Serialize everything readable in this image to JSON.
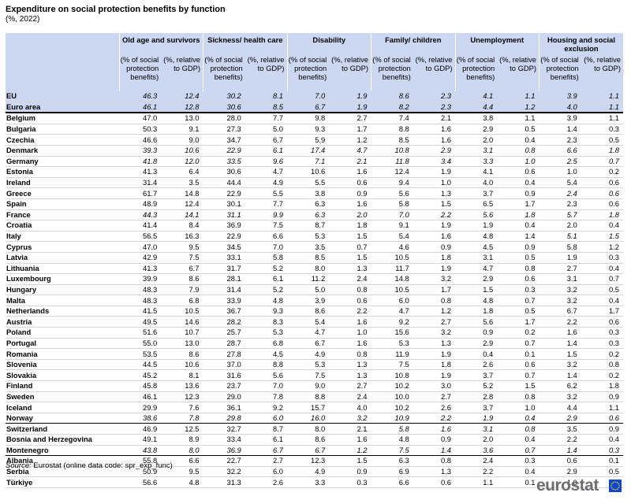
{
  "title": "Expenditure on social protection benefits by function",
  "subtitle": "(%, 2022)",
  "sub_headers": {
    "share": "(% of social protection benefits)",
    "gdp": "(%, relative to GDP)"
  },
  "groups": [
    "Old age and survivors",
    "Sickness/ health care",
    "Disability",
    "Family/ children",
    "Unemployment",
    "Housing and social exclusion"
  ],
  "rows": [
    {
      "name": "EU",
      "v": [
        "46.3",
        "12.4",
        "30.2",
        "8.1",
        "7.0",
        "1.9",
        "8.6",
        "2.3",
        "4.1",
        "1.1",
        "3.9",
        "1.1"
      ]
    },
    {
      "name": "Euro area",
      "v": [
        "46.1",
        "12.8",
        "30.6",
        "8.5",
        "6.7",
        "1.9",
        "8.2",
        "2.3",
        "4.4",
        "1.2",
        "4.0",
        "1.1"
      ]
    },
    {
      "name": "Belgium",
      "v": [
        "47.0",
        "13.0",
        "28.0",
        "7.7",
        "9.8",
        "2.7",
        "7.4",
        "2.1",
        "3.8",
        "1.1",
        "3.9",
        "1.1"
      ]
    },
    {
      "name": "Bulgaria",
      "v": [
        "50.3",
        "9.1",
        "27.3",
        "5.0",
        "9.3",
        "1.7",
        "8.8",
        "1.6",
        "2.9",
        "0.5",
        "1.4",
        "0.3"
      ]
    },
    {
      "name": "Czechia",
      "v": [
        "46.6",
        "9.0",
        "34.7",
        "6.7",
        "5.9",
        "1.2",
        "8.5",
        "1.6",
        "2.0",
        "0.4",
        "2.3",
        "0.5"
      ]
    },
    {
      "name": "Denmark",
      "v": [
        "39.3",
        "10.6",
        "22.9",
        "6.1",
        "17.4",
        "4.7",
        "10.8",
        "2.9",
        "3.1",
        "0.8",
        "6.6",
        "1.8"
      ]
    },
    {
      "name": "Germany",
      "v": [
        "41.8",
        "12.0",
        "33.5",
        "9.6",
        "7.1",
        "2.1",
        "11.8",
        "3.4",
        "3.3",
        "1.0",
        "2.5",
        "0.7"
      ]
    },
    {
      "name": "Estonia",
      "v": [
        "41.3",
        "6.4",
        "30.6",
        "4.7",
        "10.6",
        "1.6",
        "12.4",
        "1.9",
        "4.1",
        "0.6",
        "1.0",
        "0.2"
      ]
    },
    {
      "name": "Ireland",
      "v": [
        "31.4",
        "3.5",
        "44.4",
        "4.9",
        "5.5",
        "0.6",
        "9.4",
        "1.0",
        "4.0",
        "0.4",
        "5.4",
        "0.6"
      ]
    },
    {
      "name": "Greece",
      "v": [
        "61.7",
        "14.8",
        "22.9",
        "5.5",
        "3.8",
        "0.9",
        "5.6",
        "1.3",
        "3.7",
        "0.9",
        "2.4",
        "0.6"
      ]
    },
    {
      "name": "Spain",
      "v": [
        "48.9",
        "12.4",
        "30.1",
        "7.7",
        "6.3",
        "1.6",
        "5.8",
        "1.5",
        "6.5",
        "1.7",
        "2.3",
        "0.6"
      ]
    },
    {
      "name": "France",
      "v": [
        "44.3",
        "14.1",
        "31.1",
        "9.9",
        "6.3",
        "2.0",
        "7.0",
        "2.2",
        "5.6",
        "1.8",
        "5.7",
        "1.8"
      ]
    },
    {
      "name": "Croatia",
      "v": [
        "41.4",
        "8.4",
        "36.9",
        "7.5",
        "8.7",
        "1.8",
        "9.1",
        "1.9",
        "1.9",
        "0.4",
        "2.0",
        "0.4"
      ]
    },
    {
      "name": "Italy",
      "v": [
        "56.5",
        "16.3",
        "22.9",
        "6.6",
        "5.3",
        "1.5",
        "5.4",
        "1.6",
        "4.8",
        "1.4",
        "5.1",
        "1.5"
      ]
    },
    {
      "name": "Cyprus",
      "v": [
        "47.0",
        "9.5",
        "34.5",
        "7.0",
        "3.5",
        "0.7",
        "4.6",
        "0.9",
        "4.5",
        "0.9",
        "5.8",
        "1.2"
      ]
    },
    {
      "name": "Latvia",
      "v": [
        "42.9",
        "7.5",
        "33.1",
        "5.8",
        "8.5",
        "1.5",
        "10.5",
        "1.8",
        "3.1",
        "0.5",
        "1.9",
        "0.3"
      ]
    },
    {
      "name": "Lithuania",
      "v": [
        "41.3",
        "6.7",
        "31.7",
        "5.2",
        "8.0",
        "1.3",
        "11.7",
        "1.9",
        "4.7",
        "0.8",
        "2.7",
        "0.4"
      ]
    },
    {
      "name": "Luxembourg",
      "v": [
        "39.9",
        "8.6",
        "28.1",
        "6.1",
        "11.2",
        "2.4",
        "14.8",
        "3.2",
        "2.9",
        "0.6",
        "3.1",
        "0.7"
      ]
    },
    {
      "name": "Hungary",
      "v": [
        "48.3",
        "7.9",
        "31.4",
        "5.2",
        "5.0",
        "0.8",
        "10.5",
        "1.7",
        "1.5",
        "0.3",
        "3.2",
        "0.5"
      ]
    },
    {
      "name": "Malta",
      "v": [
        "48.3",
        "6.8",
        "33.9",
        "4.8",
        "3.9",
        "0.6",
        "6.0",
        "0.8",
        "4.8",
        "0.7",
        "3.2",
        "0.4"
      ]
    },
    {
      "name": "Netherlands",
      "v": [
        "41.5",
        "10.5",
        "36.7",
        "9.3",
        "8.6",
        "2.2",
        "4.7",
        "1.2",
        "1.8",
        "0.5",
        "6.7",
        "1.7"
      ]
    },
    {
      "name": "Austria",
      "v": [
        "49.5",
        "14.6",
        "28.2",
        "8.3",
        "5.4",
        "1.6",
        "9.2",
        "2.7",
        "5.6",
        "1.7",
        "2.2",
        "0.6"
      ]
    },
    {
      "name": "Poland",
      "v": [
        "51.6",
        "10.7",
        "25.7",
        "5.3",
        "4.7",
        "1.0",
        "15.6",
        "3.2",
        "0.9",
        "0.2",
        "1.6",
        "0.3"
      ]
    },
    {
      "name": "Portugal",
      "v": [
        "55.0",
        "13.0",
        "28.7",
        "6.8",
        "6.7",
        "1.6",
        "5.3",
        "1.3",
        "2.9",
        "0.7",
        "1.4",
        "0.3"
      ]
    },
    {
      "name": "Romania",
      "v": [
        "53.5",
        "8.6",
        "27.8",
        "4.5",
        "4.9",
        "0.8",
        "11.9",
        "1.9",
        "0.4",
        "0.1",
        "1.5",
        "0.2"
      ]
    },
    {
      "name": "Slovenia",
      "v": [
        "44.5",
        "10.6",
        "37.0",
        "8.8",
        "5.3",
        "1.3",
        "7.5",
        "1.8",
        "2.6",
        "0.6",
        "3.2",
        "0.8"
      ]
    },
    {
      "name": "Slovakia",
      "v": [
        "45.2",
        "8.1",
        "31.6",
        "5.6",
        "7.5",
        "1.3",
        "10.8",
        "1.9",
        "3.7",
        "0.7",
        "1.4",
        "0.2"
      ]
    },
    {
      "name": "Finland",
      "v": [
        "45.8",
        "13.6",
        "23.7",
        "7.0",
        "9.0",
        "2.7",
        "10.2",
        "3.0",
        "5.2",
        "1.5",
        "6.2",
        "1.8"
      ]
    },
    {
      "name": "Sweden",
      "v": [
        "46.1",
        "12.3",
        "29.0",
        "7.8",
        "8.8",
        "2.4",
        "10.0",
        "2.7",
        "2.8",
        "0.8",
        "3.2",
        "0.9"
      ]
    },
    {
      "name": "Iceland",
      "v": [
        "29.9",
        "7.6",
        "36.1",
        "9.2",
        "15.7",
        "4.0",
        "10.2",
        "2.6",
        "3.7",
        "1.0",
        "4.4",
        "1.1"
      ]
    },
    {
      "name": "Norway",
      "v": [
        "38.6",
        "7.8",
        "29.8",
        "6.0",
        "16.0",
        "3.2",
        "10.9",
        "2.2",
        "1.9",
        "0.4",
        "2.9",
        "0.6"
      ]
    },
    {
      "name": "Switzerland",
      "v": [
        "46.9",
        "12.5",
        "32.7",
        "8.7",
        "8.0",
        "2.1",
        "5.8",
        "1.6",
        "3.1",
        "0.8",
        "3.5",
        "0.9"
      ]
    },
    {
      "name": "Bosnia and Herzegovina",
      "v": [
        "49.1",
        "8.9",
        "33.4",
        "6.1",
        "8.6",
        "1.6",
        "4.8",
        "0.9",
        "2.0",
        "0.4",
        "2.2",
        "0.4"
      ]
    },
    {
      "name": "Montenegro",
      "v": [
        "43.8",
        "8.0",
        "36.9",
        "6.7",
        "6.7",
        "1.2",
        "7.5",
        "1.4",
        "3.6",
        "0.7",
        "1.4",
        "0.3"
      ]
    },
    {
      "name": "Albania",
      "v": [
        "55.8",
        "6.6",
        "22.7",
        "2.7",
        "12.3",
        "1.5",
        "6.3",
        "0.8",
        "2.4",
        "0.3",
        "0.6",
        "0.1"
      ]
    },
    {
      "name": "Serbia",
      "v": [
        "50.9",
        "9.5",
        "32.2",
        "6.0",
        "4.9",
        "0.9",
        "6.9",
        "1.3",
        "2.2",
        "0.4",
        "2.9",
        "0.5"
      ]
    },
    {
      "name": "Türkiye",
      "v": [
        "56.6",
        "4.8",
        "31.3",
        "2.6",
        "3.3",
        "0.3",
        "6.6",
        "0.6",
        "1.1",
        "0.1",
        "1.0",
        "0.1"
      ]
    }
  ],
  "source": {
    "label": "Source:",
    "text": "Eurostat (online data code: spr_exp_func)"
  },
  "logo_text": "eurostat"
}
